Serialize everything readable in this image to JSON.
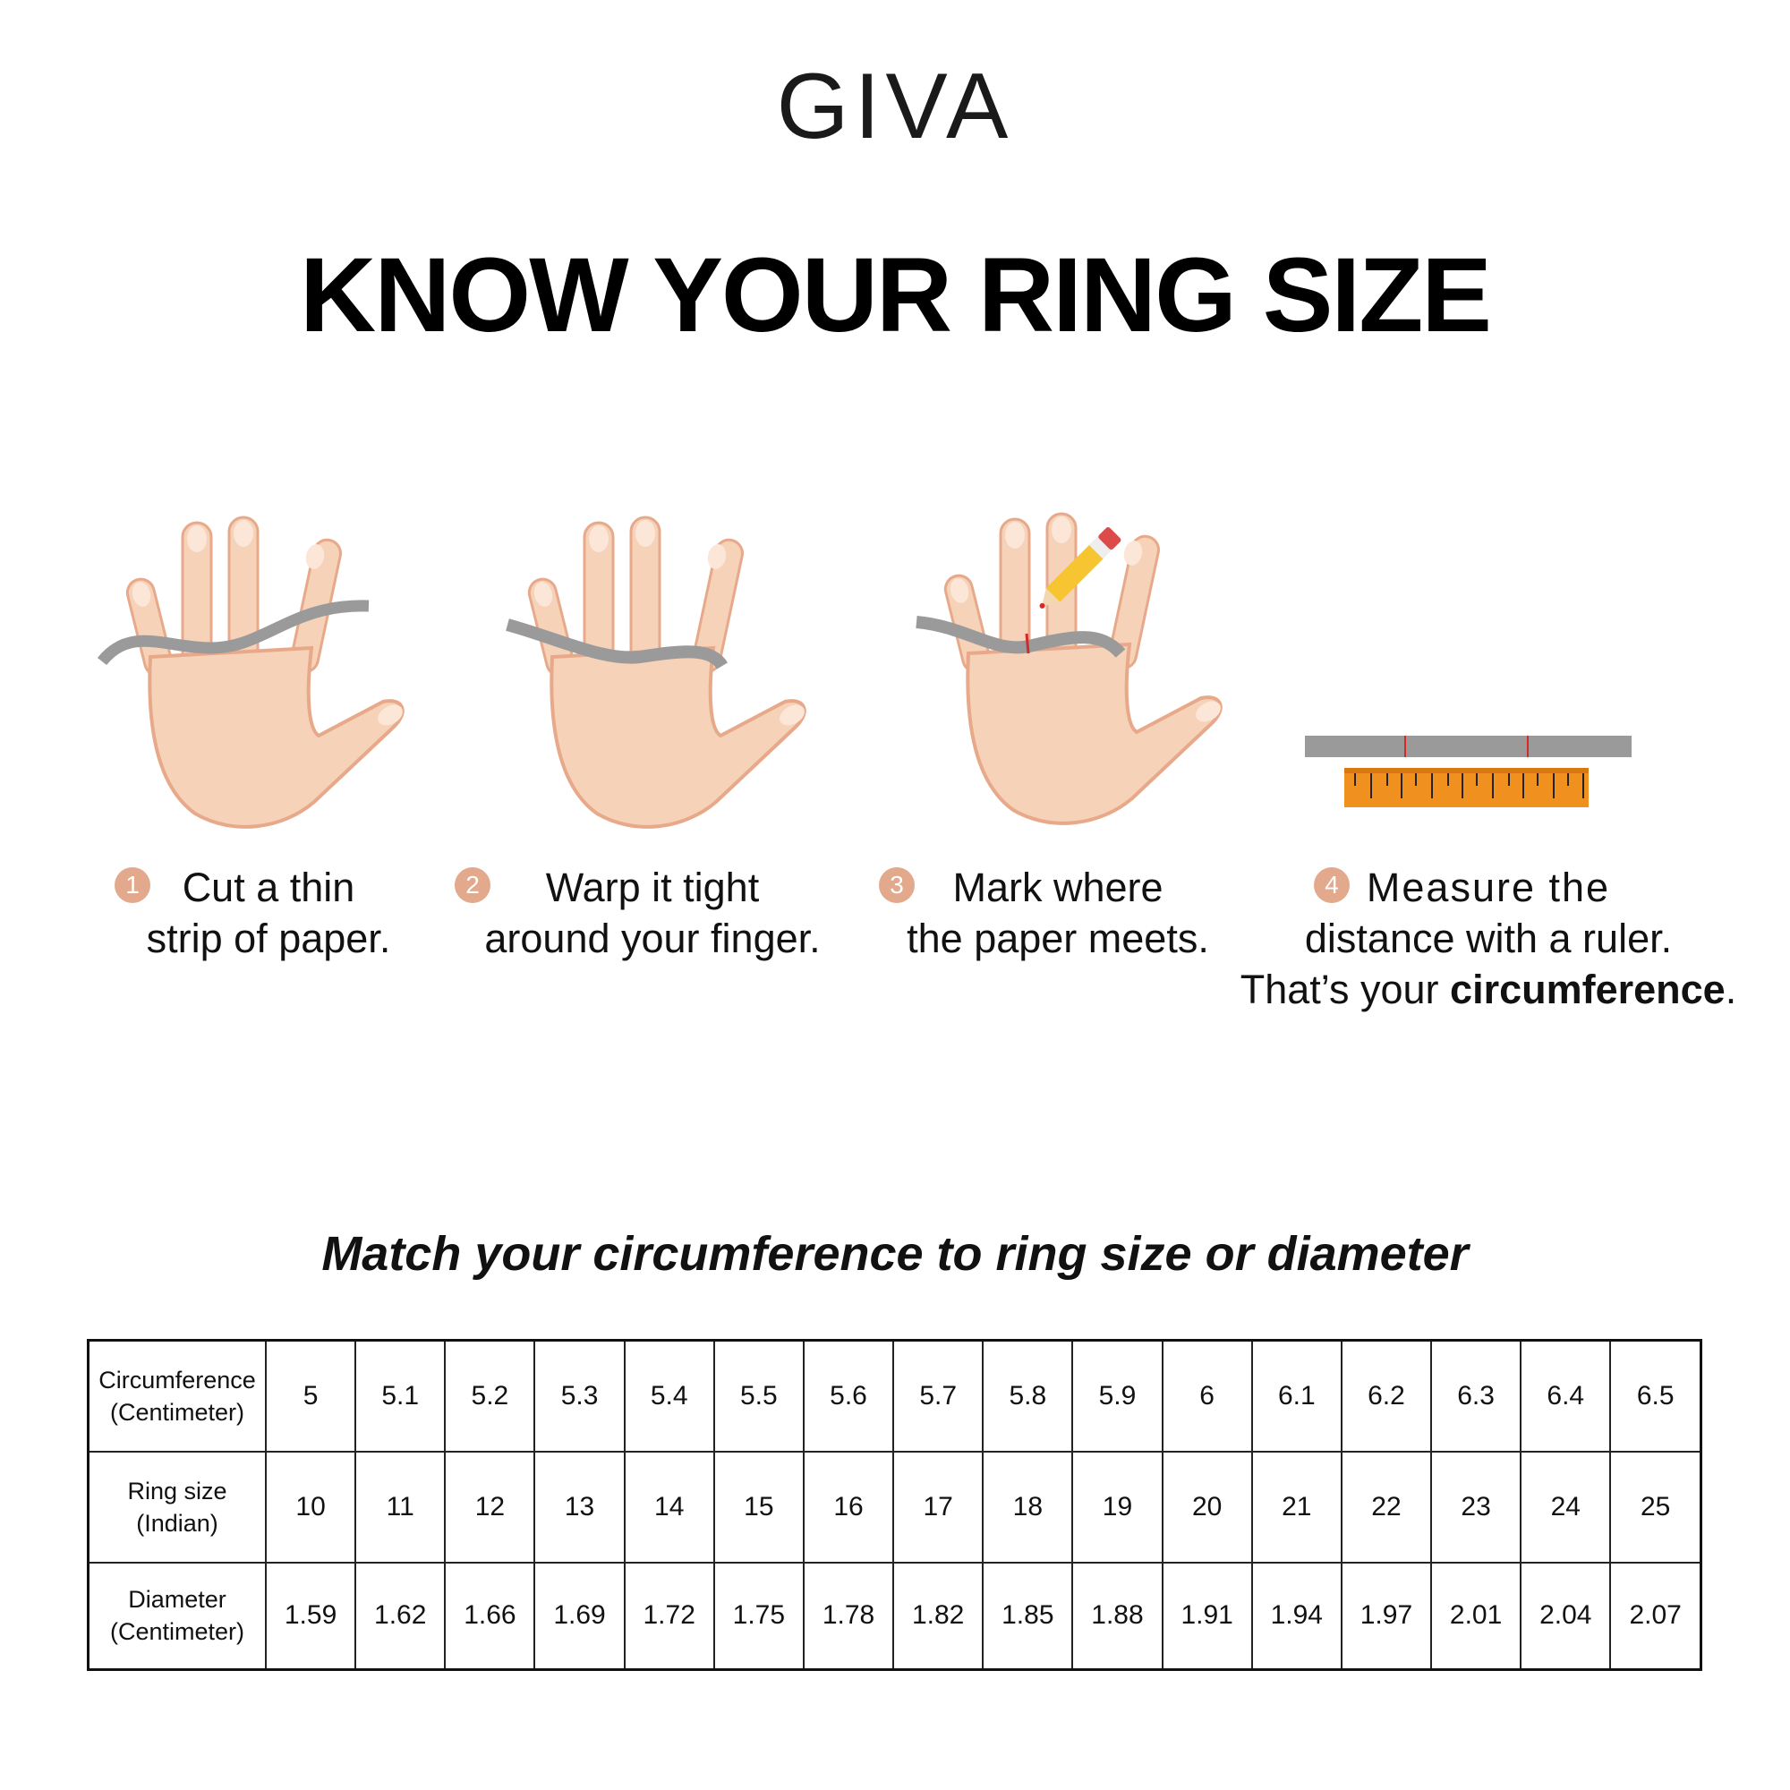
{
  "brand": {
    "logo": "GIVA"
  },
  "title": "KNOW YOUR RING SIZE",
  "steps": [
    {
      "number": "1",
      "line1": "Cut a thin",
      "line2": "strip of paper."
    },
    {
      "number": "2",
      "line1": "Warp it tight",
      "line2": "around your finger."
    },
    {
      "number": "3",
      "line1": "Mark where",
      "line2": "the paper meets."
    },
    {
      "number": "4",
      "line1": "Measure the",
      "line2": "distance with a ruler.",
      "line3_prefix": "That’s your ",
      "line3_bold": "circumference",
      "line3_suffix": "."
    }
  ],
  "subtitle": "Match your circumference to ring size or diameter",
  "table": {
    "rows": [
      {
        "label1": "Circumference",
        "label2": "(Centimeter)",
        "values": [
          "5",
          "5.1",
          "5.2",
          "5.3",
          "5.4",
          "5.5",
          "5.6",
          "5.7",
          "5.8",
          "5.9",
          "6",
          "6.1",
          "6.2",
          "6.3",
          "6.4",
          "6.5"
        ]
      },
      {
        "label1": "Ring size",
        "label2": "(Indian)",
        "values": [
          "10",
          "11",
          "12",
          "13",
          "14",
          "15",
          "16",
          "17",
          "18",
          "19",
          "20",
          "21",
          "22",
          "23",
          "24",
          "25"
        ]
      },
      {
        "label1": "Diameter",
        "label2": "(Centimeter)",
        "values": [
          "1.59",
          "1.62",
          "1.66",
          "1.69",
          "1.72",
          "1.75",
          "1.78",
          "1.82",
          "1.85",
          "1.88",
          "1.91",
          "1.94",
          "1.97",
          "2.01",
          "2.04",
          "2.07"
        ]
      }
    ]
  },
  "colors": {
    "skin": "#f5d2b8",
    "skin_shadow": "#e8a98a",
    "step_badge": "#e2a98c",
    "paper_strip": "#9a9a9a",
    "ruler": "#f0901e",
    "pencil": "#f7c531",
    "mark": "#d62828"
  }
}
